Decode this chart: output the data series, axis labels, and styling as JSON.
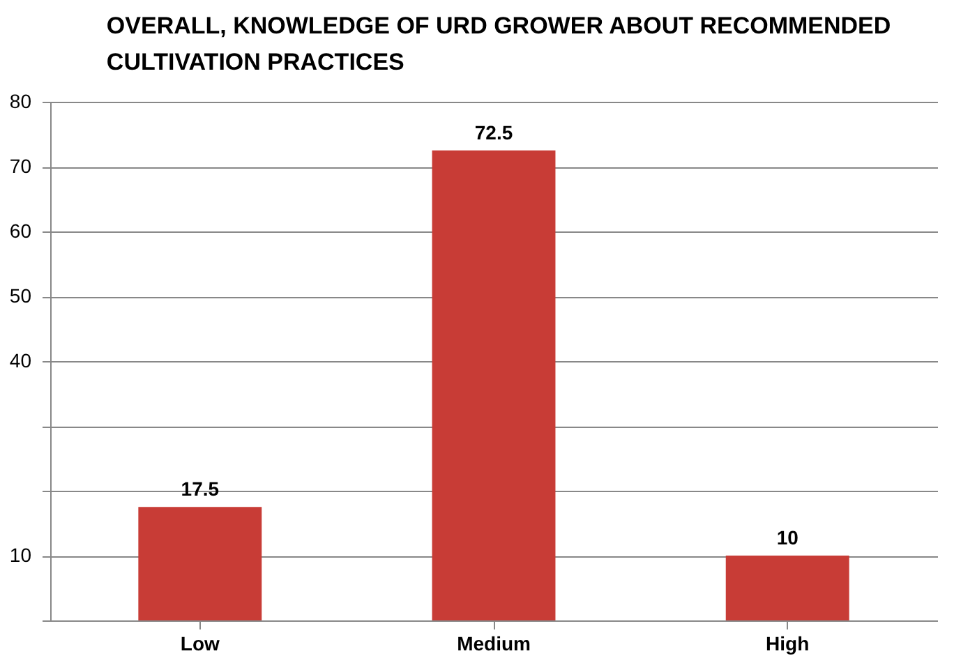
{
  "chart_data": {
    "type": "bar",
    "title": "OVERALL, KNOWLEDGE OF URD GROWER ABOUT RECOMMENDED CULTIVATION PRACTICES",
    "categories": [
      "Low",
      "Medium",
      "High"
    ],
    "values": [
      17.5,
      72.5,
      10
    ],
    "color": "#c83c36",
    "data_labels": true,
    "ylim": [
      0,
      80
    ],
    "yticks": [
      {
        "value": 0,
        "label": null
      },
      10,
      {
        "value": 20,
        "label": null
      },
      {
        "value": 30,
        "label": null
      },
      40,
      50,
      60,
      70,
      80
    ],
    "grid": "y"
  }
}
